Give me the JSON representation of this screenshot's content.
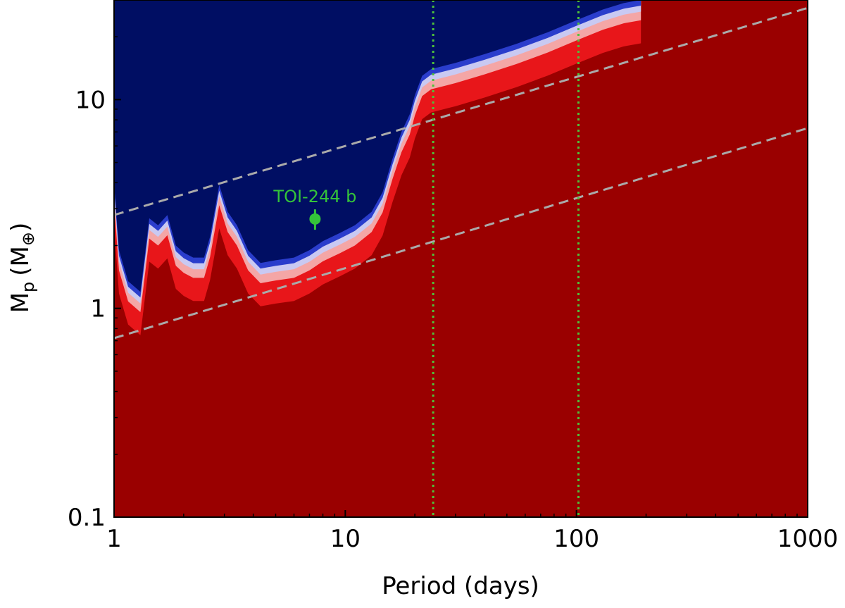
{
  "chart_data": {
    "type": "heatmap",
    "xlabel": "Period (days)",
    "ylabel_main": "M",
    "ylabel_sub": "p",
    "ylabel_unit": "(M",
    "ylabel_unit_sub": "⊕",
    "ylabel_close": ")",
    "xscale": "log",
    "yscale": "log",
    "xlim": [
      1,
      1000
    ],
    "ylim": [
      0.1,
      30
    ],
    "xticks": [
      {
        "value": 1,
        "label": "1"
      },
      {
        "value": 10,
        "label": "10"
      },
      {
        "value": 100,
        "label": "100"
      },
      {
        "value": 1000,
        "label": "1000"
      }
    ],
    "yticks": [
      {
        "value": 0.1,
        "label": "0.1"
      },
      {
        "value": 1,
        "label": "1"
      },
      {
        "value": 10,
        "label": "10"
      }
    ],
    "colors": {
      "undetected": "#9a0000",
      "detected": "#000e63",
      "transition_red": "#e8161a",
      "transition_pink": "#f4a6a6",
      "transition_lavender": "#c9c9f2",
      "transition_blue": "#2a3dcc",
      "planet": "#34c43a",
      "dashed_lines": "#aaaaaa",
      "dotted_lines": "#4ec23a"
    },
    "detection_boundary": [
      {
        "period": 1.0,
        "mass": 4.0
      },
      {
        "period": 1.05,
        "mass": 1.9
      },
      {
        "period": 1.15,
        "mass": 1.35
      },
      {
        "period": 1.3,
        "mass": 1.2
      },
      {
        "period": 1.42,
        "mass": 2.7
      },
      {
        "period": 1.55,
        "mass": 2.5
      },
      {
        "period": 1.7,
        "mass": 2.8
      },
      {
        "period": 1.85,
        "mass": 2.0
      },
      {
        "period": 2.0,
        "mass": 1.85
      },
      {
        "period": 2.2,
        "mass": 1.75
      },
      {
        "period": 2.45,
        "mass": 1.75
      },
      {
        "period": 2.6,
        "mass": 2.2
      },
      {
        "period": 2.85,
        "mass": 3.9
      },
      {
        "period": 3.1,
        "mass": 2.9
      },
      {
        "period": 3.4,
        "mass": 2.5
      },
      {
        "period": 3.8,
        "mass": 1.9
      },
      {
        "period": 4.3,
        "mass": 1.65
      },
      {
        "period": 5.0,
        "mass": 1.7
      },
      {
        "period": 6.0,
        "mass": 1.75
      },
      {
        "period": 7.0,
        "mass": 1.9
      },
      {
        "period": 8.0,
        "mass": 2.1
      },
      {
        "period": 9.5,
        "mass": 2.3
      },
      {
        "period": 11.0,
        "mass": 2.5
      },
      {
        "period": 13.0,
        "mass": 2.9
      },
      {
        "period": 14.5,
        "mass": 3.6
      },
      {
        "period": 16.0,
        "mass": 5.2
      },
      {
        "period": 17.5,
        "mass": 7.0
      },
      {
        "period": 19.0,
        "mass": 8.5
      },
      {
        "period": 20.0,
        "mass": 10.5
      },
      {
        "period": 21.5,
        "mass": 13.0
      },
      {
        "period": 23.5,
        "mass": 14.0
      },
      {
        "period": 30.0,
        "mass": 15.0
      },
      {
        "period": 40.0,
        "mass": 16.5
      },
      {
        "period": 55.0,
        "mass": 18.5
      },
      {
        "period": 75.0,
        "mass": 21.0
      },
      {
        "period": 100.0,
        "mass": 24.0
      },
      {
        "period": 130.0,
        "mass": 27.0
      },
      {
        "period": 160.0,
        "mass": 29.0
      },
      {
        "period": 190.0,
        "mass": 30.0
      }
    ],
    "dashed_lines": [
      {
        "p1": 1,
        "m1": 2.8,
        "p2": 1000,
        "m2": 27.5
      },
      {
        "p1": 1,
        "m1": 0.72,
        "p2": 1000,
        "m2": 7.3
      }
    ],
    "vertical_dotted_lines": [
      24.0,
      102.0
    ],
    "planet": {
      "name": "TOI-244 b",
      "period": 7.4,
      "mass": 2.68,
      "mass_err_low": 0.3,
      "mass_err_high": 0.3
    }
  }
}
